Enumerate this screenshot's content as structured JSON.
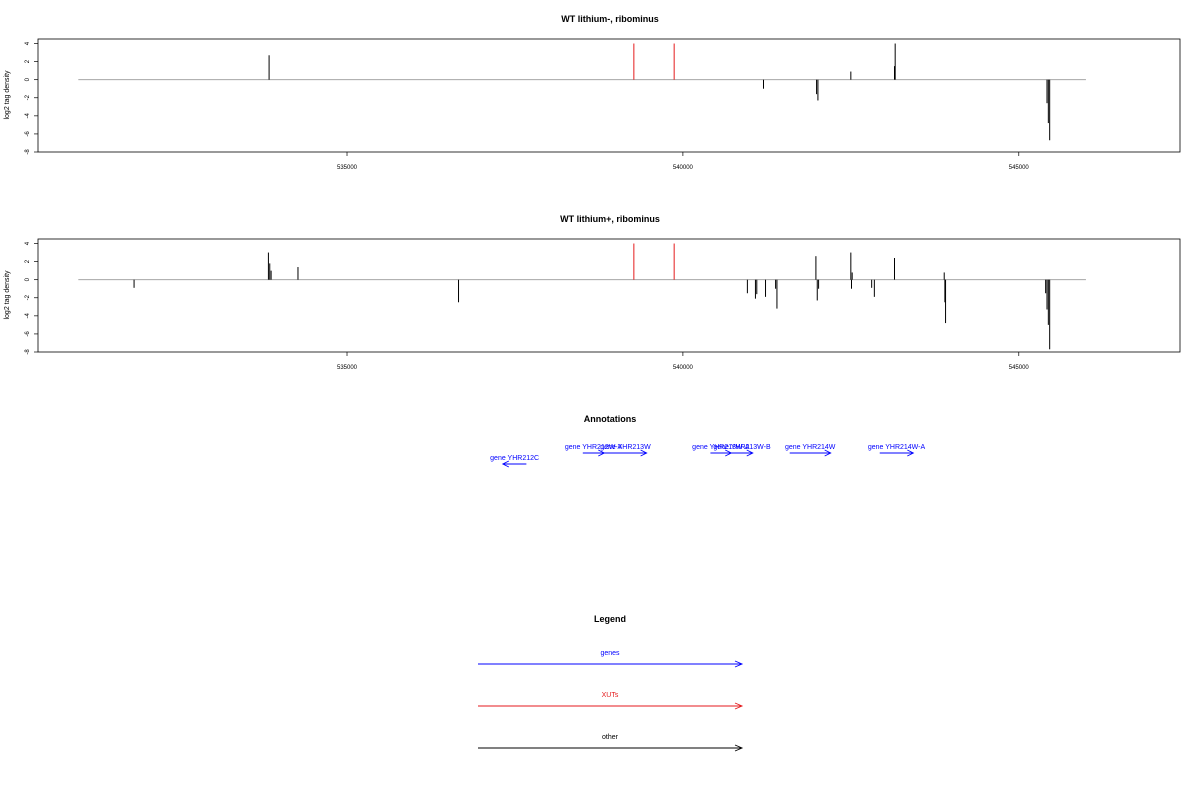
{
  "chart_data": [
    {
      "type": "bar",
      "title": "WT lithium-, ribominus",
      "ylabel": "log2 tag density",
      "xlabel": "",
      "xlim": [
        530400,
        547400
      ],
      "ylim": [
        -8,
        4.5
      ],
      "x_ticks": [
        535000,
        540000,
        545000
      ],
      "x_tick_labels": [
        "535000",
        "540000",
        "545000"
      ],
      "y_ticks": [
        4,
        2,
        0,
        -2,
        -4,
        -6,
        -8
      ],
      "y_tick_labels": [
        "4",
        "2",
        "0",
        "-2",
        "-4",
        "-6",
        "-8"
      ],
      "colors": {
        "black": "#000000",
        "red": "#e41a1c",
        "baseline": "#999999"
      },
      "series": [
        {
          "color": "black",
          "points": [
            {
              "x": 533840,
              "y": 2.7
            },
            {
              "x": 541200,
              "y": -1.0
            },
            {
              "x": 541990,
              "y": -1.6
            },
            {
              "x": 542010,
              "y": -2.3
            },
            {
              "x": 542500,
              "y": 0.9
            },
            {
              "x": 543150,
              "y": 1.5
            },
            {
              "x": 543160,
              "y": 4.0
            },
            {
              "x": 545420,
              "y": -2.6
            },
            {
              "x": 545440,
              "y": -4.8
            },
            {
              "x": 545460,
              "y": -6.7
            }
          ]
        },
        {
          "color": "red",
          "points": [
            {
              "x": 539270,
              "y": 4.0
            },
            {
              "x": 539870,
              "y": 4.0
            }
          ]
        }
      ],
      "baseline_range": [
        531000,
        546000
      ]
    },
    {
      "type": "bar",
      "title": "WT lithium+, ribominus",
      "ylabel": "log2 tag density",
      "xlabel": "",
      "xlim": [
        530400,
        547400
      ],
      "ylim": [
        -8,
        4.5
      ],
      "x_ticks": [
        535000,
        540000,
        545000
      ],
      "x_tick_labels": [
        "535000",
        "540000",
        "545000"
      ],
      "y_ticks": [
        4,
        2,
        0,
        -2,
        -4,
        -6,
        -8
      ],
      "y_tick_labels": [
        "4",
        "2",
        "0",
        "-2",
        "-4",
        "-6",
        "-8"
      ],
      "colors": {
        "black": "#000000",
        "red": "#e41a1c",
        "baseline": "#999999"
      },
      "series": [
        {
          "color": "black",
          "points": [
            {
              "x": 531830,
              "y": -0.9
            },
            {
              "x": 533830,
              "y": 3.0
            },
            {
              "x": 533850,
              "y": 1.8
            },
            {
              "x": 533870,
              "y": 1.0
            },
            {
              "x": 534270,
              "y": 1.4
            },
            {
              "x": 536660,
              "y": -2.5
            },
            {
              "x": 540960,
              "y": -1.5
            },
            {
              "x": 541080,
              "y": -2.1
            },
            {
              "x": 541100,
              "y": -1.6
            },
            {
              "x": 541230,
              "y": -1.9
            },
            {
              "x": 541380,
              "y": -1.0
            },
            {
              "x": 541400,
              "y": -3.2
            },
            {
              "x": 541980,
              "y": 2.6
            },
            {
              "x": 542000,
              "y": -2.3
            },
            {
              "x": 542020,
              "y": -1.0
            },
            {
              "x": 542500,
              "y": 3.0
            },
            {
              "x": 542510,
              "y": -1.0
            },
            {
              "x": 542520,
              "y": 0.8
            },
            {
              "x": 542810,
              "y": -0.9
            },
            {
              "x": 542850,
              "y": -1.9
            },
            {
              "x": 543150,
              "y": 2.4
            },
            {
              "x": 543890,
              "y": 0.8
            },
            {
              "x": 543900,
              "y": -2.5
            },
            {
              "x": 543910,
              "y": -4.8
            },
            {
              "x": 545400,
              "y": -1.5
            },
            {
              "x": 545420,
              "y": -3.3
            },
            {
              "x": 545440,
              "y": -5.0
            },
            {
              "x": 545460,
              "y": -7.7
            }
          ]
        },
        {
          "color": "red",
          "points": [
            {
              "x": 539270,
              "y": 4.0
            },
            {
              "x": 539870,
              "y": 4.0
            }
          ]
        }
      ],
      "baseline_range": [
        531000,
        546000
      ]
    }
  ],
  "annotations": {
    "title": "Annotations",
    "genes": [
      {
        "label": "gene YHR212C",
        "from": 537670,
        "to": 537320,
        "row": 1
      },
      {
        "label": "gene YHR212W-A",
        "from": 538510,
        "to": 538830,
        "row": 0
      },
      {
        "label": "gene YHR213W",
        "from": 538830,
        "to": 539460,
        "row": 0
      },
      {
        "label": "gene YHR213W-A",
        "from": 540410,
        "to": 540720,
        "row": 0
      },
      {
        "label": "gene YHR213W-B",
        "from": 540720,
        "to": 541040,
        "row": 0
      },
      {
        "label": "gene YHR214W",
        "from": 541590,
        "to": 542200,
        "row": 0
      },
      {
        "label": "gene YHR214W-A",
        "from": 542930,
        "to": 543430,
        "row": 0
      }
    ]
  },
  "legend": {
    "title": "Legend",
    "items": [
      {
        "label": "genes",
        "color": "#0000ff"
      },
      {
        "label": "XUTs",
        "color": "#e41a1c"
      },
      {
        "label": "other",
        "color": "#000000"
      }
    ]
  }
}
